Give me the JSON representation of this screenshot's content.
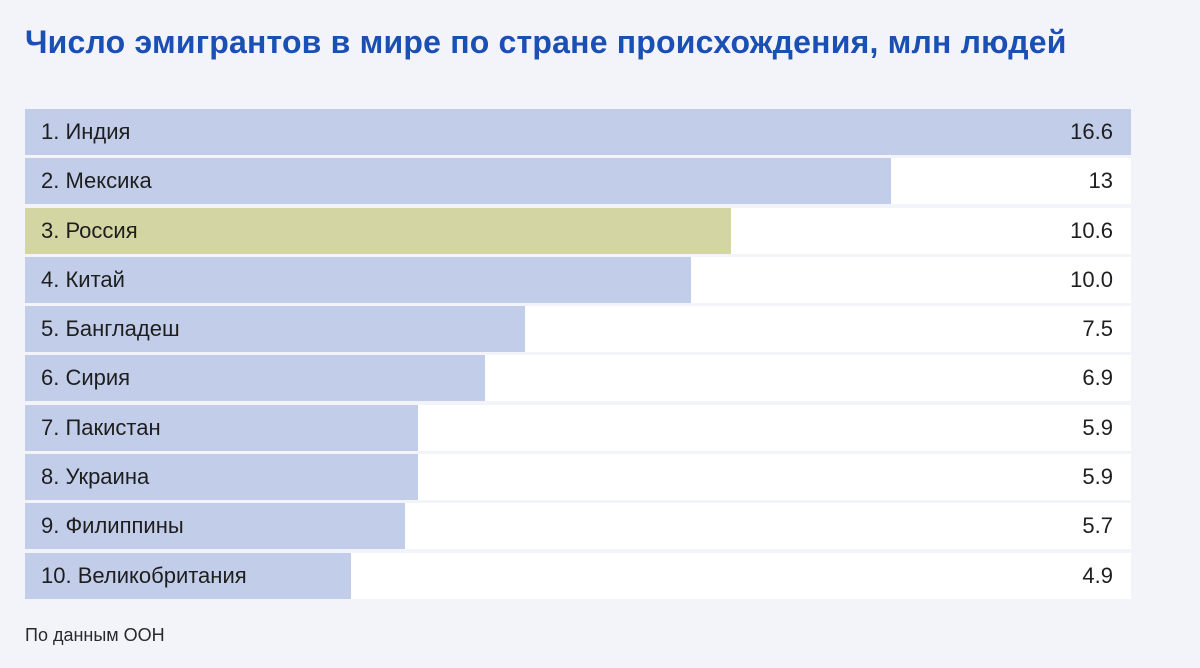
{
  "chart_data": {
    "type": "bar",
    "orientation": "horizontal",
    "title": "Число эмигрантов в мире по стране происхождения, млн людей",
    "categories": [
      "1. Индия",
      "2. Мексика",
      "3. Россия",
      "4. Китай",
      "5. Бангладеш",
      "6. Сирия",
      "7. Пакистан",
      "8. Украина",
      "9. Филиппины",
      "10. Великобритания"
    ],
    "values": [
      16.6,
      13,
      10.6,
      10.0,
      7.5,
      6.9,
      5.9,
      5.9,
      5.7,
      4.9
    ],
    "value_labels": [
      "16.6",
      "13",
      "10.6",
      "10.0",
      "7.5",
      "6.9",
      "5.9",
      "5.9",
      "5.7",
      "4.9"
    ],
    "xlim": [
      0,
      16.6
    ],
    "highlight": "3. Россия",
    "colors": {
      "bar": "#c2cde9",
      "highlight": "#d3d6a3",
      "title": "#1a4fb4"
    },
    "grid": false,
    "source": "По данным ООН"
  }
}
